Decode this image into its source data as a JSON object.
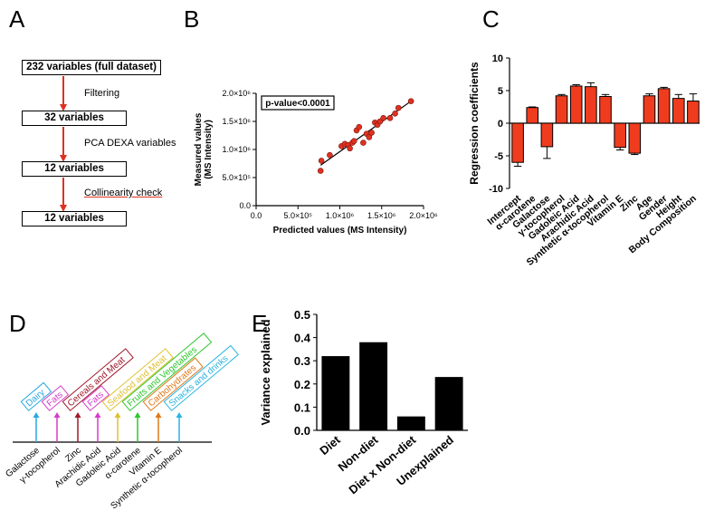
{
  "panels": {
    "A": "A",
    "B": "B",
    "C": "C",
    "D": "D",
    "E": "E"
  },
  "flowchart": {
    "boxes": [
      "232 variables (full dataset)",
      "32 variables",
      "12 variables",
      "12 variables"
    ],
    "steps": [
      "Filtering",
      "PCA DEXA variables",
      "Collinearity check"
    ],
    "arrow_color": "#e03020"
  },
  "chart_data": [
    {
      "panel": "B",
      "type": "scatter",
      "xlabel": "Predicted values (MS Intensity)",
      "ylabel": "Measured values\n(MS Intensity)",
      "annotation": "p-value<0.0001",
      "xlim": [
        0,
        2000000
      ],
      "ylim": [
        0,
        2000000
      ],
      "xticks": [
        "0.0",
        "5.0×10⁵",
        "1.0×10⁶",
        "1.5×10⁶",
        "2.0×10⁶"
      ],
      "yticks": [
        "0.0",
        "5.0×10⁵",
        "1.0×10⁶",
        "1.5×10⁶",
        "2.0×10⁶"
      ],
      "point_color": "#e03020",
      "points": [
        [
          770000,
          620000
        ],
        [
          780000,
          800000
        ],
        [
          880000,
          900000
        ],
        [
          1020000,
          1060000
        ],
        [
          1060000,
          1100000
        ],
        [
          1100000,
          1080000
        ],
        [
          1120000,
          1020000
        ],
        [
          1150000,
          1120000
        ],
        [
          1170000,
          1150000
        ],
        [
          1200000,
          1340000
        ],
        [
          1230000,
          1400000
        ],
        [
          1280000,
          1120000
        ],
        [
          1320000,
          1280000
        ],
        [
          1350000,
          1220000
        ],
        [
          1380000,
          1300000
        ],
        [
          1420000,
          1480000
        ],
        [
          1450000,
          1440000
        ],
        [
          1480000,
          1500000
        ],
        [
          1520000,
          1560000
        ],
        [
          1600000,
          1560000
        ],
        [
          1660000,
          1640000
        ],
        [
          1700000,
          1740000
        ],
        [
          1850000,
          1860000
        ]
      ],
      "fit_line": [
        [
          770000,
          720000
        ],
        [
          1850000,
          1860000
        ]
      ]
    },
    {
      "panel": "C",
      "type": "bar",
      "ylabel": "Regression coefficients",
      "ylim": [
        -10,
        10
      ],
      "yticks": [
        -10,
        -5,
        0,
        5,
        10
      ],
      "bar_color": "#f03c1e",
      "categories": [
        "Intercept",
        "α-carotene",
        "Galactose",
        "γ-tocopherol",
        "Gadoleic Acid",
        "Arachidic Acid",
        "Synthetic α-tocopherol",
        "Vitamin E",
        "Zinc",
        "Age",
        "Gender",
        "Height",
        "Body Composition"
      ],
      "values": [
        -6.0,
        2.4,
        -3.6,
        4.2,
        5.7,
        5.6,
        4.1,
        -3.7,
        -4.6,
        4.2,
        5.3,
        3.8,
        3.4
      ],
      "errors": [
        0.6,
        0.1,
        1.8,
        0.2,
        0.2,
        0.6,
        0.3,
        0.4,
        0.2,
        0.3,
        0.2,
        0.6,
        1.1
      ]
    },
    {
      "panel": "D",
      "type": "table",
      "variables": [
        "Galactose",
        "γ-tocopherol",
        "Zinc",
        "Arachidic Acid",
        "Gadoleic Acid",
        "α-carotene",
        "Vitamin E",
        "Synthetic α-tocopherol"
      ],
      "foods": [
        {
          "label": "Dairy",
          "color": "#29a8e0"
        },
        {
          "label": "Fats",
          "color": "#d63cc8"
        },
        {
          "label": "Cereals and Meat",
          "color": "#a0182a"
        },
        {
          "label": "Fats",
          "color": "#d63cc8"
        },
        {
          "label": "Seafood and Meat",
          "color": "#e0c030"
        },
        {
          "label": "Fruits and Vegetables",
          "color": "#2ec82e"
        },
        {
          "label": "Carbohydrates",
          "color": "#e07818"
        },
        {
          "label": "Snacks and drinks",
          "color": "#29b4e0"
        }
      ]
    },
    {
      "panel": "E",
      "type": "bar",
      "ylabel": "Variance explained",
      "ylim": [
        0,
        0.5
      ],
      "yticks": [
        "0.0",
        "0.1",
        "0.2",
        "0.3",
        "0.4",
        "0.5"
      ],
      "bar_color": "#000000",
      "categories": [
        "Diet",
        "Non-diet",
        "Diet x Non-diet",
        "Unexplained"
      ],
      "values": [
        0.32,
        0.38,
        0.06,
        0.23
      ]
    }
  ]
}
